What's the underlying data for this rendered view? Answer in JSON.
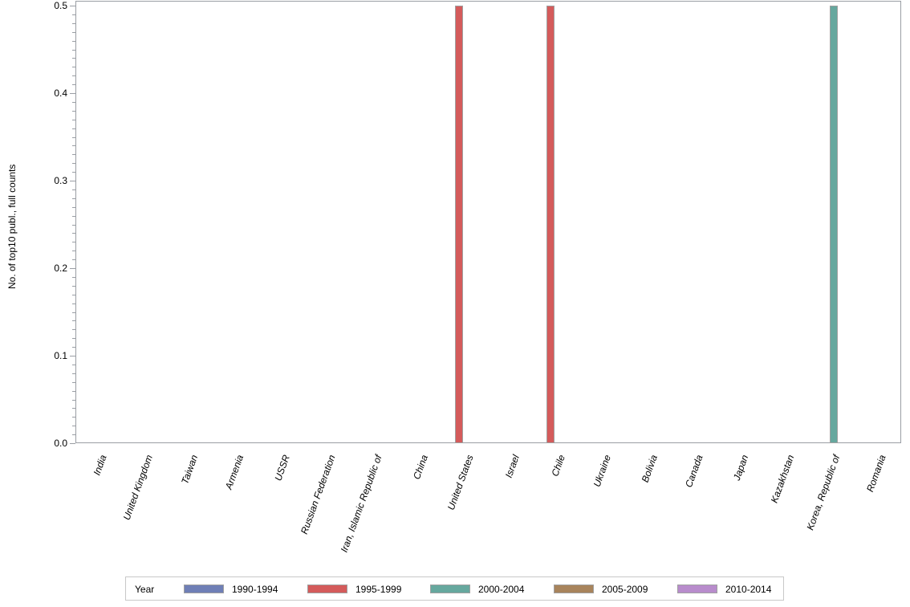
{
  "chart_data": {
    "type": "bar",
    "title": "",
    "xlabel": "",
    "ylabel": "No. of top10 publ., full counts",
    "ylim": [
      0,
      0.5
    ],
    "yticks": [
      "0.0",
      "0.1",
      "0.2",
      "0.3",
      "0.4",
      "0.5"
    ],
    "grid": false,
    "legend_position": "bottom",
    "legend_title": "Year",
    "categories": [
      "India",
      "United Kingdom",
      "Taiwan",
      "Armenia",
      "USSR",
      "Russian Federation",
      "Iran, Islamic Republic of",
      "China",
      "United States",
      "Israel",
      "Chile",
      "Ukraine",
      "Bolivia",
      "Canada",
      "Japan",
      "Kazakhstan",
      "Korea, Republic of",
      "Romania"
    ],
    "series": [
      {
        "name": "1990-1994",
        "color": "#6f7fb6",
        "values": [
          0,
          0,
          0,
          0,
          0,
          0,
          0,
          0,
          0,
          0,
          0,
          0,
          0,
          0,
          0,
          0,
          0,
          0
        ]
      },
      {
        "name": "1995-1999",
        "color": "#d45b5b",
        "values": [
          0,
          0,
          0,
          0,
          0,
          0,
          0,
          0,
          0.5,
          0,
          0.5,
          0,
          0,
          0,
          0,
          0,
          0,
          0
        ]
      },
      {
        "name": "2000-2004",
        "color": "#66a89e",
        "values": [
          0,
          0,
          0,
          0,
          0,
          0,
          0,
          0,
          0,
          0,
          0,
          0,
          0,
          0,
          0,
          0,
          0.5,
          0
        ]
      },
      {
        "name": "2005-2009",
        "color": "#a8845c",
        "values": [
          0,
          0,
          0,
          0,
          0,
          0,
          0,
          0,
          0,
          0,
          0,
          0,
          0,
          0,
          0,
          0,
          0,
          0
        ]
      },
      {
        "name": "2010-2014",
        "color": "#b88ccc",
        "values": [
          0,
          0,
          0,
          0,
          0,
          0,
          0,
          0,
          0,
          0,
          0,
          0,
          0,
          0,
          0,
          0,
          0,
          0
        ]
      }
    ]
  }
}
